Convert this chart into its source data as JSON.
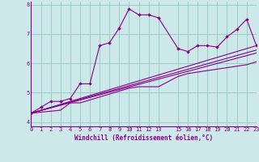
{
  "xlabel": "Windchill (Refroidissement éolien,°C)",
  "background_color": "#cce8e8",
  "line_color": "#880088",
  "grid_color": "#99cccc",
  "series": [
    {
      "x": [
        0,
        1,
        2,
        3,
        4,
        5,
        6,
        7,
        8,
        9,
        10,
        11,
        12,
        13,
        15,
        16,
        17,
        18,
        19,
        20,
        21,
        22,
        23
      ],
      "y": [
        4.3,
        4.5,
        4.7,
        4.7,
        4.8,
        5.3,
        5.3,
        6.6,
        6.7,
        7.2,
        7.85,
        7.65,
        7.65,
        7.55,
        6.5,
        6.4,
        6.6,
        6.6,
        6.55,
        6.9,
        7.15,
        7.5,
        6.6
      ],
      "marker": true
    },
    {
      "x": [
        0,
        3,
        4,
        5,
        10,
        11,
        12,
        13,
        15,
        16,
        17,
        18,
        19,
        20,
        21,
        22,
        23
      ],
      "y": [
        4.3,
        4.4,
        4.65,
        4.65,
        5.15,
        5.2,
        5.2,
        5.2,
        5.55,
        5.65,
        5.7,
        5.75,
        5.8,
        5.85,
        5.9,
        5.95,
        6.05
      ],
      "marker": false
    },
    {
      "x": [
        0,
        23
      ],
      "y": [
        4.3,
        6.6
      ],
      "marker": false
    },
    {
      "x": [
        0,
        23
      ],
      "y": [
        4.3,
        6.45
      ],
      "marker": false
    },
    {
      "x": [
        0,
        23
      ],
      "y": [
        4.3,
        6.35
      ],
      "marker": false
    }
  ],
  "xlim": [
    0,
    23
  ],
  "ylim": [
    3.85,
    8.1
  ],
  "xticks": [
    0,
    1,
    2,
    3,
    4,
    5,
    6,
    7,
    8,
    9,
    10,
    11,
    12,
    13,
    15,
    16,
    17,
    18,
    19,
    20,
    21,
    22,
    23
  ],
  "yticks": [
    4,
    5,
    6,
    7,
    8
  ],
  "xlabel_fontsize": 5.5,
  "tick_fontsize": 5.0
}
